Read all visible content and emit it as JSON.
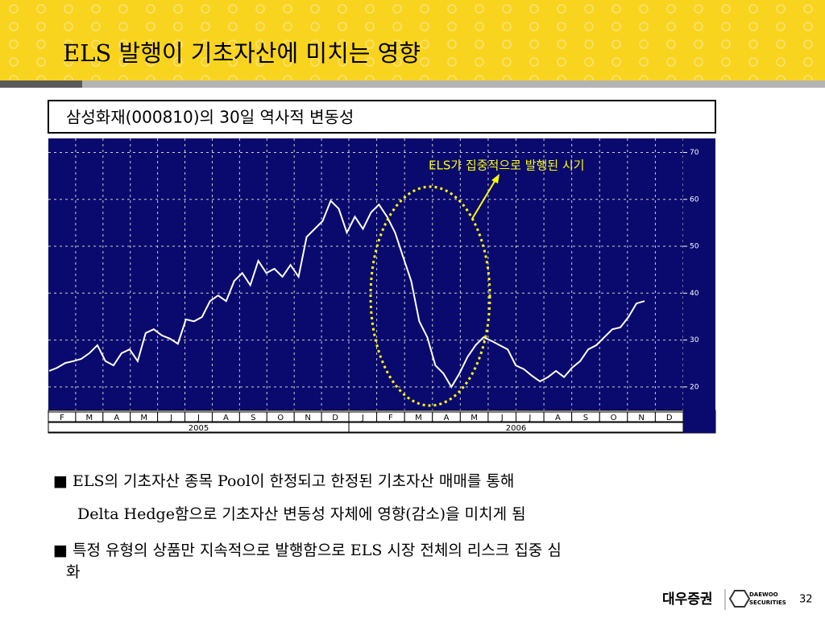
{
  "slide": {
    "title": "ELS 발행이 기초자산에 미치는 영향",
    "bullets": [
      "■ ELS의 기초자산 종목 Pool이 한정되고 한정된 기초자산 매매를 통해",
      "Delta Hedge함으로 기초자산 변동성 자체에 영향(감소)을 미치게 됨",
      "■ 특정 유형의 상품만 지속적으로 발행함으로 ELS 시장 전체의 리스크 집중 심",
      "화"
    ],
    "logo": "대우증권",
    "logo_en": [
      "DAEWOO",
      "SECURITIES"
    ],
    "page": "32"
  },
  "chart_data": {
    "type": "line",
    "title": "삼성화재(000810)의 30일 역사적 변동성",
    "annotation": "ELS가 집중적으로 발행된 시기",
    "months": [
      "F",
      "M",
      "A",
      "M",
      "J",
      "J",
      "A",
      "S",
      "O",
      "N",
      "D",
      "J",
      "F",
      "M",
      "A",
      "M",
      "J",
      "J",
      "A",
      "S",
      "O",
      "N",
      "D"
    ],
    "years": [
      "2005",
      "2006"
    ],
    "series": [
      {
        "color": "#ffffff",
        "values": [
          23.4,
          24.1,
          25.1,
          25.5,
          26.0,
          27.2,
          28.9,
          25.5,
          24.6,
          27.2,
          28.0,
          25.5,
          31.5,
          32.3,
          31.0,
          30.3,
          29.2,
          34.4,
          34.0,
          34.9,
          38.3,
          39.5,
          38.3,
          42.6,
          44.3,
          41.7,
          46.9,
          44.3,
          45.2,
          43.5,
          46.0,
          43.5,
          52.0,
          53.7,
          55.4,
          59.7,
          58.0,
          52.9,
          56.3,
          53.7,
          57.2,
          58.9,
          56.3,
          52.9,
          47.7,
          42.6,
          34.0,
          30.6,
          24.6,
          22.9,
          20.0,
          22.9,
          26.4,
          28.9,
          30.6,
          29.8,
          28.9,
          28.0,
          24.6,
          23.8,
          22.4,
          21.2,
          22.1,
          23.4,
          22.1,
          24.1,
          25.5,
          28.0,
          28.9,
          30.6,
          32.3,
          32.7,
          34.9,
          37.8,
          38.3
        ]
      }
    ],
    "ylim": [
      15,
      73
    ],
    "yticks": [
      20,
      30,
      40,
      50,
      60,
      70
    ],
    "grid": true,
    "background": "#0a0a6e"
  }
}
